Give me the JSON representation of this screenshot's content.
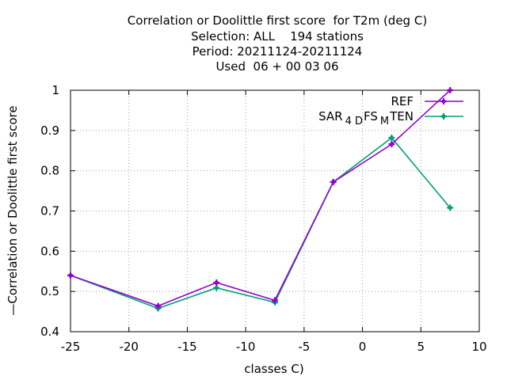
{
  "chart_data": {
    "type": "line",
    "title_lines": [
      "Correlation or Doolittle first score  for T2m (deg C)",
      "Selection: ALL    194 stations",
      "Period: 20211124-20211124",
      "Used  06 + 00 03 06"
    ],
    "xlabel": "classes C)",
    "ylabel": "—Correlation or Doolittle first score",
    "xlim": [
      -25,
      10
    ],
    "ylim": [
      0.4,
      1.0
    ],
    "xticks": [
      -25,
      -20,
      -15,
      -10,
      -5,
      0,
      5,
      10
    ],
    "yticks": [
      0.4,
      0.5,
      0.6,
      0.7,
      0.8,
      0.9,
      1.0
    ],
    "xtick_labels": [
      "-25",
      "-20",
      "-15",
      "-10",
      "-5",
      "0",
      "5",
      "10"
    ],
    "ytick_labels": [
      "0.4",
      "0.5",
      "0.6",
      "0.7",
      "0.8",
      "0.9",
      "1"
    ],
    "grid": true,
    "legend_position": "top-right",
    "x": [
      -25,
      -17.5,
      -12.5,
      -7.5,
      -2.5,
      2.5,
      7.5
    ],
    "series": [
      {
        "name": "REF",
        "color": "#9400d3",
        "marker": "plus",
        "values": [
          0.54,
          0.464,
          0.522,
          0.478,
          0.772,
          0.866,
          1.0
        ]
      },
      {
        "name": "SAR_4D FS_M TEN",
        "color": "#009e73",
        "marker": "plus",
        "values": [
          0.54,
          0.458,
          0.509,
          0.473,
          0.772,
          0.882,
          0.708
        ]
      }
    ],
    "legend": [
      {
        "text": "REF",
        "base": "REF",
        "parts": []
      },
      {
        "text": "SAR_4D FS_M TEN",
        "base": "SAR",
        "parts": [
          {
            "sub": "4 D",
            "tail": "FS"
          },
          {
            "sub": "M",
            "tail": "TEN"
          }
        ]
      }
    ]
  }
}
